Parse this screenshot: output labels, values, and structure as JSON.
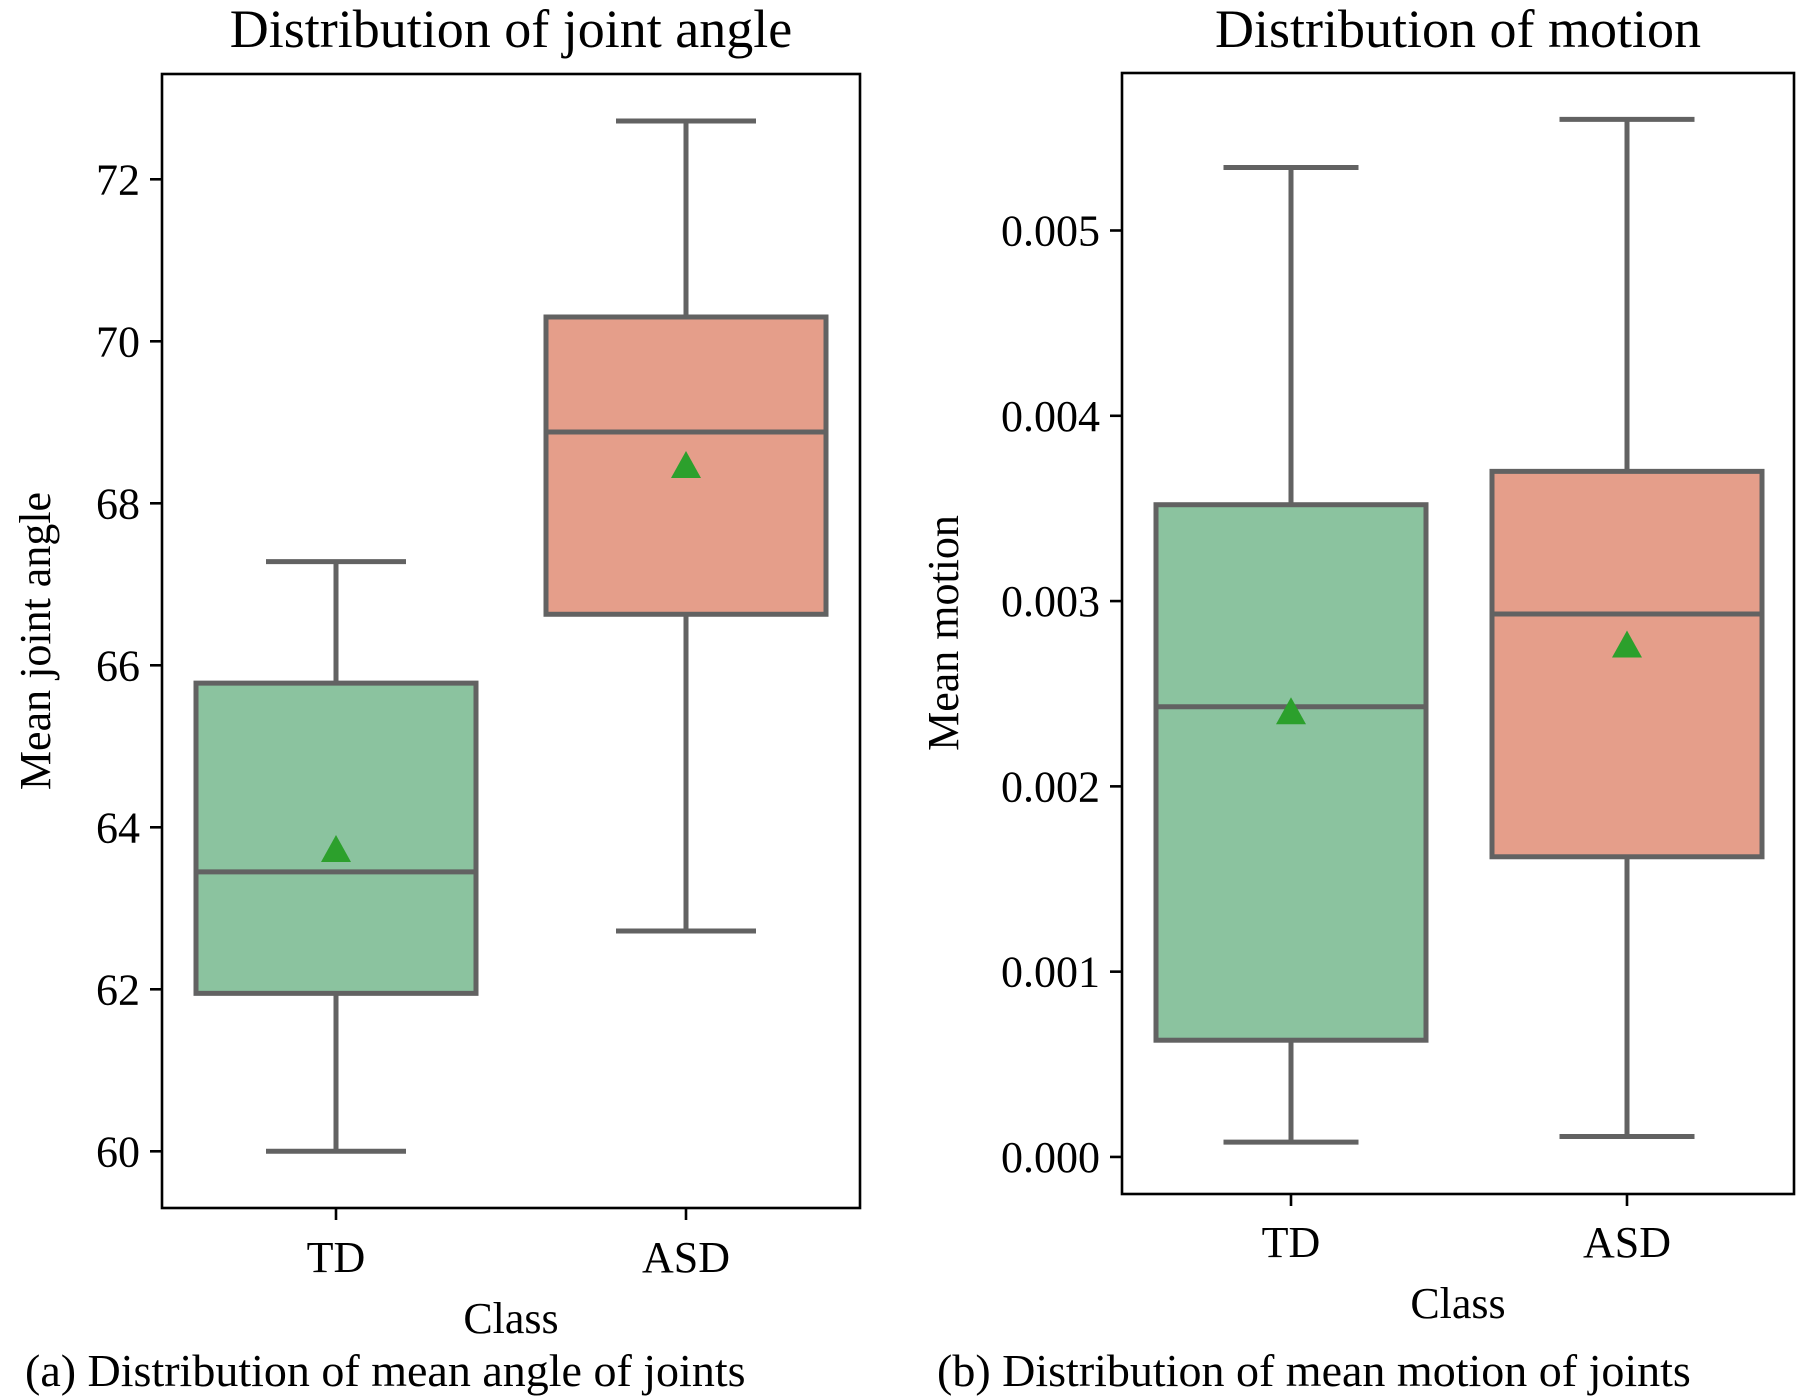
{
  "figure": {
    "panels": [
      {
        "caption": "(a) Distribution of mean angle of joints",
        "chart_data": {
          "type": "box",
          "title": "Distribution of joint angle",
          "xlabel": "Class",
          "ylabel": "Mean joint angle",
          "categories": [
            "TD",
            "ASD"
          ],
          "yticks": [
            60,
            62,
            64,
            66,
            68,
            70,
            72
          ],
          "ytick_labels": [
            "60",
            "62",
            "64",
            "66",
            "68",
            "70",
            "72"
          ],
          "ylim": [
            59.3,
            73.3
          ],
          "boxes": [
            {
              "name": "TD",
              "whisker_low": 60.0,
              "q1": 61.95,
              "median": 63.45,
              "q3": 65.78,
              "whisker_high": 67.28,
              "mean": 63.72,
              "color": "#8bc39f"
            },
            {
              "name": "ASD",
              "whisker_low": 62.72,
              "q1": 66.63,
              "median": 68.88,
              "q3": 70.3,
              "whisker_high": 72.72,
              "mean": 68.46,
              "color": "#e59e8a"
            }
          ]
        }
      },
      {
        "caption": "(b) Distribution of mean motion of joints",
        "chart_data": {
          "type": "box",
          "title": "Distribution of motion",
          "xlabel": "Class",
          "ylabel": "Mean motion",
          "categories": [
            "TD",
            "ASD"
          ],
          "yticks": [
            0.0,
            0.001,
            0.002,
            0.003,
            0.004,
            0.005
          ],
          "ytick_labels": [
            "0.000",
            "0.001",
            "0.002",
            "0.003",
            "0.004",
            "0.005"
          ],
          "ylim": [
            -0.0002,
            0.00585
          ],
          "boxes": [
            {
              "name": "TD",
              "whisker_low": 8e-05,
              "q1": 0.00063,
              "median": 0.00243,
              "q3": 0.00352,
              "whisker_high": 0.00534,
              "mean": 0.0024,
              "color": "#8bc39f"
            },
            {
              "name": "ASD",
              "whisker_low": 0.00011,
              "q1": 0.00162,
              "median": 0.00293,
              "q3": 0.0037,
              "whisker_high": 0.0056,
              "mean": 0.00276,
              "color": "#e59e8a"
            }
          ]
        }
      }
    ]
  },
  "colors": {
    "box_edge": "#626262",
    "mean_marker": "#2ca02c",
    "axis": "#000000"
  }
}
